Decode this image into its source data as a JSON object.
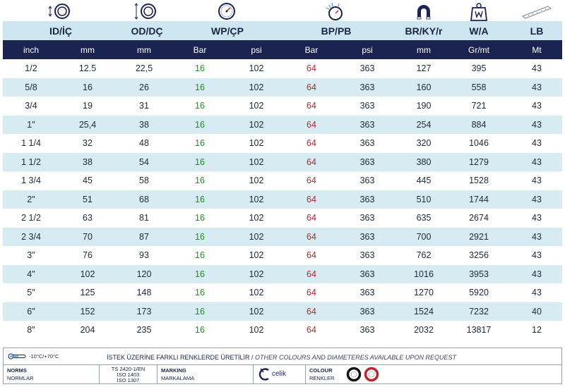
{
  "header": {
    "columns": [
      "ID/İÇ",
      "OD/DÇ",
      "WP/ÇP",
      "BP/PB",
      "BR/KY/r",
      "W/A",
      "LB"
    ]
  },
  "icons": [
    "inner-diameter-icon",
    "outer-diameter-icon",
    "pressure-gauge-icon",
    "burst-pressure-icon",
    "bend-radius-magnet-icon",
    "weight-icon",
    "length-icon"
  ],
  "units": [
    "inch",
    "mm",
    "mm",
    "Bar",
    "psi",
    "Bar",
    "psi",
    "mm",
    "Gr/mt",
    "Mt"
  ],
  "rows": [
    [
      "1/2",
      "12.5",
      "22,5",
      "16",
      "102",
      "64",
      "363",
      "127",
      "395",
      "43"
    ],
    [
      "5/8",
      "16",
      "26",
      "16",
      "102",
      "64",
      "363",
      "160",
      "558",
      "43"
    ],
    [
      "3/4",
      "19",
      "31",
      "16",
      "102",
      "64",
      "363",
      "190",
      "721",
      "43"
    ],
    [
      "1\"",
      "25,4",
      "38",
      "16",
      "102",
      "64",
      "363",
      "254",
      "884",
      "43"
    ],
    [
      "1 1/4",
      "32",
      "48",
      "16",
      "102",
      "64",
      "363",
      "320",
      "1046",
      "43"
    ],
    [
      "1 1/2",
      "38",
      "54",
      "16",
      "102",
      "64",
      "363",
      "380",
      "1279",
      "43"
    ],
    [
      "1 3/4",
      "45",
      "58",
      "16",
      "102",
      "64",
      "363",
      "445",
      "1528",
      "43"
    ],
    [
      "2\"",
      "51",
      "68",
      "16",
      "102",
      "64",
      "363",
      "510",
      "1744",
      "43"
    ],
    [
      "2 1/2",
      "63",
      "81",
      "16",
      "102",
      "64",
      "363",
      "635",
      "2674",
      "43"
    ],
    [
      "2 3/4",
      "70",
      "87",
      "16",
      "102",
      "64",
      "363",
      "700",
      "2921",
      "43"
    ],
    [
      "3\"",
      "76",
      "93",
      "16",
      "102",
      "64",
      "363",
      "762",
      "3256",
      "43"
    ],
    [
      "4\"",
      "102",
      "120",
      "16",
      "102",
      "64",
      "363",
      "1016",
      "3953",
      "43"
    ],
    [
      "5\"",
      "125",
      "148",
      "16",
      "102",
      "64",
      "363",
      "1270",
      "5920",
      "43"
    ],
    [
      "6\"",
      "152",
      "173",
      "16",
      "102",
      "64",
      "363",
      "1524",
      "7232",
      "40"
    ],
    [
      "8\"",
      "204",
      "235",
      "16",
      "102",
      "64",
      "363",
      "2032",
      "13817",
      "12"
    ]
  ],
  "footer": {
    "temperature": "-10°C/+70°C",
    "note_main": "İSTEK ÜZERİNE FARKLI RENKLERDE ÜRETİLİR /",
    "note_en": " OTHER COLOURS AND DIAMETERES AVAILABLE UPON REQUEST",
    "norms_label": "NORMS",
    "norms_label_tr": "NORMLAR",
    "standards": [
      "TS 2420-1/EN",
      "ISO 1403",
      "ISO 1307"
    ],
    "marking_label": "MARKING",
    "marking_label_tr": "MARKALAMA",
    "brand": "celik",
    "colour_label": "COLOUR",
    "colour_label_tr": "RENKLER",
    "colours": [
      "#111111",
      "#c0242b"
    ]
  }
}
